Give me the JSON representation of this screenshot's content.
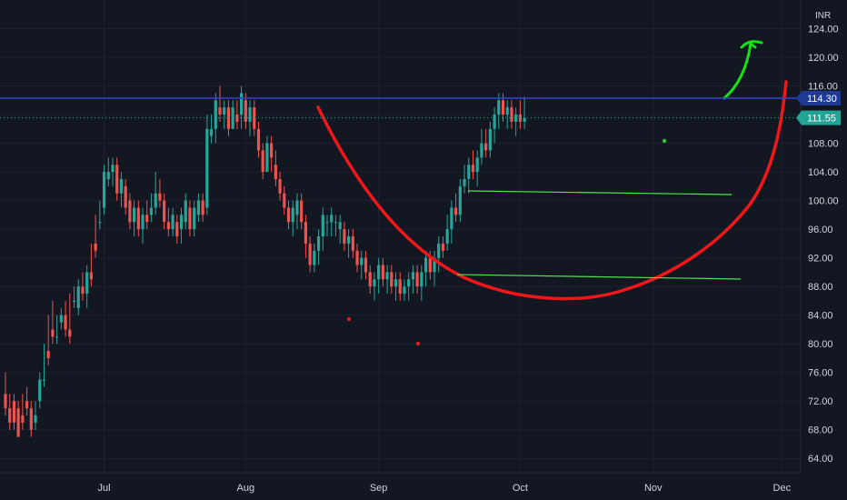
{
  "chart_data": {
    "type": "candlestick",
    "currency": "INR",
    "ylim": [
      62,
      128
    ],
    "y_ticks": [
      {
        "value": 64,
        "label": "64.00"
      },
      {
        "value": 68,
        "label": "68.00"
      },
      {
        "value": 72,
        "label": "72.00"
      },
      {
        "value": 76,
        "label": "76.00"
      },
      {
        "value": 80,
        "label": "80.00"
      },
      {
        "value": 84,
        "label": "84.00"
      },
      {
        "value": 88,
        "label": "88.00"
      },
      {
        "value": 92,
        "label": "92.00"
      },
      {
        "value": 96,
        "label": "96.00"
      },
      {
        "value": 100,
        "label": "100.00"
      },
      {
        "value": 104,
        "label": "104.00"
      },
      {
        "value": 108,
        "label": "108.00"
      },
      {
        "value": 112,
        "label": "112.00"
      },
      {
        "value": 116,
        "label": "116.00"
      },
      {
        "value": 120,
        "label": "120.00"
      },
      {
        "value": 124,
        "label": "124.00"
      }
    ],
    "x_ticks": [
      {
        "label": "Jul",
        "index": 23
      },
      {
        "label": "Aug",
        "index": 56
      },
      {
        "label": "Sep",
        "index": 87
      },
      {
        "label": "Oct",
        "index": 120
      },
      {
        "label": "Nov",
        "index": 151
      },
      {
        "label": "Dec",
        "index": 181
      }
    ],
    "candles": [
      [
        73,
        75,
        71,
        70,
        76
      ],
      [
        71,
        72,
        69,
        68,
        73
      ],
      [
        72,
        71,
        69,
        68,
        73
      ],
      [
        71,
        70,
        67,
        67,
        72
      ],
      [
        70,
        72,
        69,
        68,
        73
      ],
      [
        72,
        73,
        71,
        70,
        74
      ],
      [
        71,
        69,
        68,
        67,
        72
      ],
      [
        69,
        71,
        70,
        68,
        72
      ],
      [
        72,
        74,
        75,
        71,
        76
      ],
      [
        75,
        79,
        75,
        74,
        80
      ],
      [
        79,
        83,
        78,
        77,
        84
      ],
      [
        82,
        85,
        81,
        80,
        86
      ],
      [
        81,
        83,
        81,
        80,
        84
      ],
      [
        83,
        84,
        84,
        82,
        85
      ],
      [
        84,
        85,
        82,
        81,
        86
      ],
      [
        82,
        86,
        81,
        80,
        87
      ],
      [
        86,
        87,
        86,
        85,
        88
      ],
      [
        85,
        86,
        88,
        84,
        89
      ],
      [
        88,
        89,
        87,
        86,
        90
      ],
      [
        87,
        86,
        90,
        85,
        91
      ],
      [
        90,
        93,
        89,
        88,
        94
      ],
      [
        94,
        97,
        93,
        92,
        98
      ],
      [
        97,
        99,
        97,
        96,
        100
      ],
      [
        99,
        101,
        104,
        98,
        105
      ],
      [
        103,
        105,
        104,
        102,
        106
      ],
      [
        104,
        103,
        105,
        102,
        106
      ],
      [
        105,
        104,
        101,
        100,
        106
      ],
      [
        101,
        100,
        103,
        99,
        104
      ],
      [
        102,
        101,
        99,
        98,
        103
      ],
      [
        100,
        99,
        97,
        96,
        101
      ],
      [
        97,
        96,
        99,
        95,
        100
      ],
      [
        99,
        98,
        96,
        95,
        100
      ],
      [
        96,
        95,
        98,
        94,
        99
      ],
      [
        98,
        99,
        97,
        96,
        100
      ],
      [
        98,
        100,
        99,
        97,
        101
      ],
      [
        99,
        103,
        101,
        98,
        104
      ],
      [
        101,
        102,
        100,
        99,
        103
      ],
      [
        100,
        99,
        97,
        96,
        101
      ],
      [
        97,
        98,
        96,
        95,
        99
      ],
      [
        96,
        95,
        98,
        95,
        99
      ],
      [
        97,
        96,
        95,
        94,
        98
      ],
      [
        96,
        95,
        98,
        94,
        99
      ],
      [
        97,
        99,
        100,
        96,
        101
      ],
      [
        99,
        98,
        96,
        95,
        100
      ],
      [
        96,
        97,
        99,
        95,
        100
      ],
      [
        98,
        99,
        100,
        97,
        101
      ],
      [
        100,
        99,
        98,
        97,
        101
      ],
      [
        99,
        101,
        110,
        98,
        112
      ],
      [
        109,
        111,
        110,
        108,
        112
      ],
      [
        110,
        109,
        114,
        108,
        115
      ],
      [
        113,
        115,
        112,
        111,
        116
      ],
      [
        112,
        111,
        113,
        110,
        114
      ],
      [
        113,
        112,
        110,
        109,
        114
      ],
      [
        110,
        111,
        113,
        110,
        114
      ],
      [
        112,
        113,
        111,
        110,
        114
      ],
      [
        112,
        111,
        115,
        110,
        116
      ],
      [
        114,
        113,
        111,
        110,
        115
      ],
      [
        111,
        110,
        113,
        109,
        114
      ],
      [
        113,
        112,
        110,
        109,
        114
      ],
      [
        110,
        109,
        107,
        106,
        111
      ],
      [
        107,
        106,
        104,
        103,
        108
      ],
      [
        104,
        106,
        108,
        104,
        109
      ],
      [
        108,
        107,
        106,
        104,
        109
      ],
      [
        105,
        106,
        103,
        102,
        107
      ],
      [
        103,
        102,
        101,
        100,
        104
      ],
      [
        101,
        100,
        99,
        98,
        102
      ],
      [
        99,
        98,
        97,
        96,
        100
      ],
      [
        97,
        96,
        99,
        95,
        100
      ],
      [
        98,
        97,
        100,
        96,
        101
      ],
      [
        100,
        99,
        97,
        96,
        101
      ],
      [
        97,
        96,
        94,
        92,
        98
      ],
      [
        94,
        93,
        91,
        90,
        95
      ],
      [
        91,
        92,
        93,
        90,
        94
      ],
      [
        93,
        92,
        95,
        91,
        96
      ],
      [
        95,
        94,
        98,
        93,
        99
      ],
      [
        97,
        96,
        97,
        95,
        98
      ],
      [
        97,
        96,
        98,
        95,
        99
      ],
      [
        97,
        96,
        97,
        95,
        98
      ],
      [
        96,
        95,
        97,
        94,
        98
      ],
      [
        96,
        95,
        94,
        93,
        97
      ],
      [
        94,
        93,
        95,
        92,
        96
      ],
      [
        95,
        94,
        93,
        92,
        96
      ],
      [
        93,
        92,
        91,
        90,
        94
      ],
      [
        91,
        90,
        92,
        89,
        93
      ],
      [
        92,
        91,
        90,
        89,
        93
      ],
      [
        90,
        89,
        88,
        87,
        91
      ],
      [
        88,
        87,
        89,
        86,
        90
      ],
      [
        89,
        88,
        91,
        87,
        92
      ],
      [
        91,
        90,
        89,
        88,
        92
      ],
      [
        89,
        88,
        90,
        87,
        91
      ],
      [
        90,
        89,
        88,
        87,
        91
      ],
      [
        88,
        87,
        89,
        86,
        90
      ],
      [
        89,
        88,
        87,
        86,
        90
      ],
      [
        87,
        86,
        88,
        86,
        89
      ],
      [
        88,
        87,
        89,
        86,
        90
      ],
      [
        89,
        88,
        90,
        87,
        91
      ],
      [
        90,
        89,
        88,
        87,
        91
      ],
      [
        88,
        87,
        90,
        86,
        91
      ],
      [
        90,
        89,
        92,
        88,
        93
      ],
      [
        92,
        91,
        90,
        89,
        93
      ],
      [
        90,
        89,
        92,
        88,
        93
      ],
      [
        92,
        91,
        94,
        90,
        95
      ],
      [
        94,
        93,
        93,
        92,
        95
      ],
      [
        94,
        97,
        96,
        93,
        98
      ],
      [
        96,
        95,
        99,
        94,
        100
      ],
      [
        99,
        100,
        98,
        97,
        101
      ],
      [
        98,
        100,
        102,
        97,
        103
      ],
      [
        102,
        104,
        103,
        101,
        105
      ],
      [
        103,
        102,
        105,
        101,
        106
      ],
      [
        105,
        106,
        104,
        103,
        107
      ],
      [
        104,
        103,
        106,
        102,
        107
      ],
      [
        106,
        107,
        108,
        105,
        110
      ],
      [
        108,
        109,
        107,
        106,
        110
      ],
      [
        107,
        108,
        110,
        106,
        111
      ],
      [
        110,
        109,
        112,
        108,
        113
      ],
      [
        112,
        111,
        114,
        110,
        115
      ],
      [
        114,
        113,
        112,
        111,
        115
      ],
      [
        112,
        111,
        113,
        110,
        114
      ],
      [
        113,
        112,
        111,
        110,
        114
      ],
      [
        111,
        110,
        112,
        109,
        113
      ],
      [
        112,
        113,
        111,
        110,
        114
      ],
      [
        111,
        112,
        111.5,
        110,
        114.5
      ]
    ],
    "price_lines": [
      {
        "value": 114.3,
        "label": "114.30",
        "color": "#2a2e8c",
        "tag_color": "#1f3a93"
      },
      {
        "value": 111.55,
        "label": "111.55",
        "color": "#26a69a",
        "tag_color": "#22a394"
      }
    ],
    "colors": {
      "up": "#26a69a",
      "down": "#ef5350",
      "background": "#131722"
    }
  }
}
